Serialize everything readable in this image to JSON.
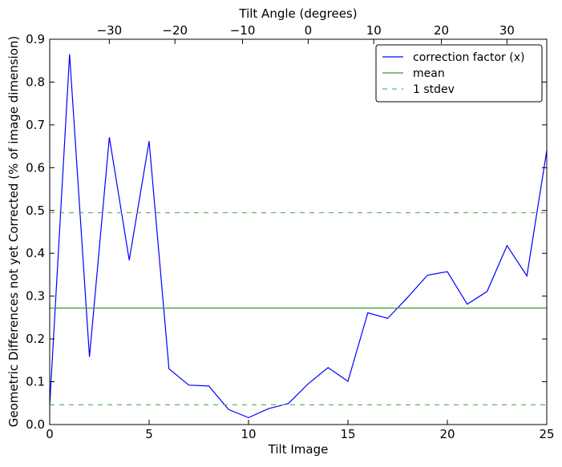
{
  "chart_data": {
    "type": "line",
    "xlabel": "Tilt Image",
    "ylabel": "Geometric Differences not yet Corrected (% of image dimension)",
    "top_xlabel": "Tilt Angle (degrees)",
    "xlim": [
      0,
      25
    ],
    "ylim": [
      0,
      0.9
    ],
    "x_ticks": [
      0,
      5,
      10,
      15,
      20,
      25
    ],
    "x_tick_labels": [
      "0",
      "5",
      "10",
      "15",
      "20",
      "25"
    ],
    "y_ticks": [
      0.0,
      0.1,
      0.2,
      0.3,
      0.4,
      0.5,
      0.6,
      0.7,
      0.8,
      0.9
    ],
    "y_tick_labels": [
      "0.0",
      "0.1",
      "0.2",
      "0.3",
      "0.4",
      "0.5",
      "0.6",
      "0.7",
      "0.8",
      "0.9"
    ],
    "top_axis": {
      "tick_labels": [
        "−30",
        "−20",
        "−10",
        "0",
        "10",
        "20",
        "30"
      ],
      "tick_values_bottom_units": [
        3.0,
        6.3,
        9.7,
        13.0,
        16.3,
        19.7,
        23.0
      ]
    },
    "series": [
      {
        "name": "correction factor (x)",
        "color": "#0000ff",
        "style": "solid",
        "x": [
          0,
          1,
          2,
          3,
          4,
          5,
          6,
          7,
          8,
          9,
          10,
          11,
          12,
          13,
          14,
          15,
          16,
          17,
          18,
          19,
          20,
          21,
          22,
          23,
          24,
          25
        ],
        "y": [
          0.045,
          0.865,
          0.158,
          0.671,
          0.384,
          0.662,
          0.13,
          0.092,
          0.09,
          0.035,
          0.016,
          0.037,
          0.049,
          0.095,
          0.133,
          0.101,
          0.261,
          0.248,
          0.297,
          0.349,
          0.357,
          0.281,
          0.311,
          0.418,
          0.347,
          0.64
        ]
      },
      {
        "name": "mean",
        "color": "#2ca02c",
        "style": "solid",
        "x": [
          0,
          25
        ],
        "y": [
          0.272,
          0.272
        ]
      },
      {
        "name": "1 stdev",
        "color": "#5cb85c",
        "style": "dashed",
        "x": [
          0,
          25
        ],
        "y": [
          0.495,
          0.495
        ]
      },
      {
        "name": "",
        "color": "#5cb85c",
        "style": "dashed",
        "x": [
          0,
          25
        ],
        "y": [
          0.046,
          0.046
        ]
      }
    ],
    "legend": {
      "position": "top-right",
      "entries": [
        "correction factor (x)",
        "mean",
        "1 stdev"
      ]
    },
    "grid": false
  }
}
